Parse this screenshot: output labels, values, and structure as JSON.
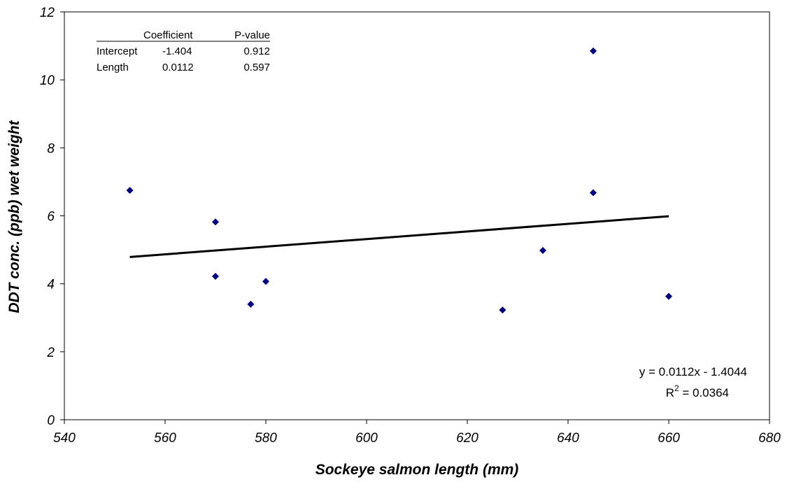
{
  "chart_data": {
    "type": "scatter",
    "xlabel": "Sockeye salmon length (mm)",
    "ylabel": "DDT conc. (ppb) wet weight",
    "xlim": [
      540,
      680
    ],
    "ylim": [
      0,
      12
    ],
    "x_ticks": [
      540,
      560,
      580,
      600,
      620,
      640,
      660,
      680
    ],
    "y_ticks": [
      0,
      2,
      4,
      6,
      8,
      10,
      12
    ],
    "grid": false,
    "points": [
      {
        "x": 553,
        "y": 6.75
      },
      {
        "x": 570,
        "y": 5.82
      },
      {
        "x": 570,
        "y": 4.22
      },
      {
        "x": 577,
        "y": 3.4
      },
      {
        "x": 580,
        "y": 4.07
      },
      {
        "x": 627,
        "y": 3.23
      },
      {
        "x": 635,
        "y": 4.98
      },
      {
        "x": 645,
        "y": 10.85
      },
      {
        "x": 645,
        "y": 6.68
      },
      {
        "x": 660,
        "y": 3.63
      }
    ],
    "trendline": {
      "slope": 0.0112,
      "intercept": -1.4044,
      "x_range": [
        553,
        660
      ]
    },
    "marker_color": "#000080",
    "regression_table": {
      "headers": [
        "",
        "Coefficient",
        "P-value"
      ],
      "rows": [
        [
          "Intercept",
          "-1.404",
          "0.912"
        ],
        [
          "Length",
          "0.0112",
          "0.597"
        ]
      ]
    },
    "equation": "y = 0.0112x - 1.4044",
    "r2_prefix": "R",
    "r2_sup": "2",
    "r2_value": " = 0.0364"
  }
}
